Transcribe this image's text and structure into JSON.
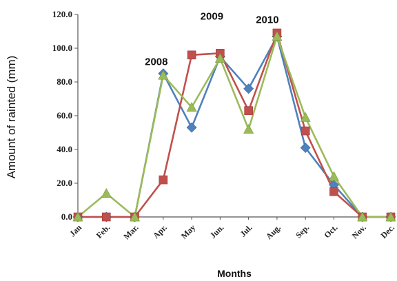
{
  "chart_data": {
    "type": "line",
    "categories": [
      "Jan",
      "Feb.",
      "Mar.",
      "Apr.",
      "May",
      "Jun.",
      "Jul.",
      "Aug.",
      "Sep.",
      "Oct.",
      "Nov.",
      "Dec."
    ],
    "series": [
      {
        "name": "2008",
        "color": "#4f81bd",
        "marker": "diamond",
        "values": [
          0,
          0,
          0,
          85,
          53,
          95,
          76,
          107,
          41,
          19,
          0,
          0
        ]
      },
      {
        "name": "2009",
        "color": "#c0504d",
        "marker": "square",
        "values": [
          0,
          0,
          0,
          22,
          96,
          97,
          63,
          109,
          51,
          15,
          0,
          0
        ]
      },
      {
        "name": "2010",
        "color": "#9bbb59",
        "marker": "triangle",
        "values": [
          0,
          14,
          0,
          84,
          65,
          94,
          52,
          107,
          59,
          24,
          0,
          0
        ]
      }
    ],
    "xlabel": "Months",
    "ylabel": "Amount of rainted (mm)",
    "ylim": [
      0,
      120
    ],
    "yticks": [
      "0.0",
      "20.0",
      "40.0",
      "60.0",
      "80.0",
      "100.0",
      "120.0"
    ],
    "grid": false,
    "legend": "inline labels"
  }
}
